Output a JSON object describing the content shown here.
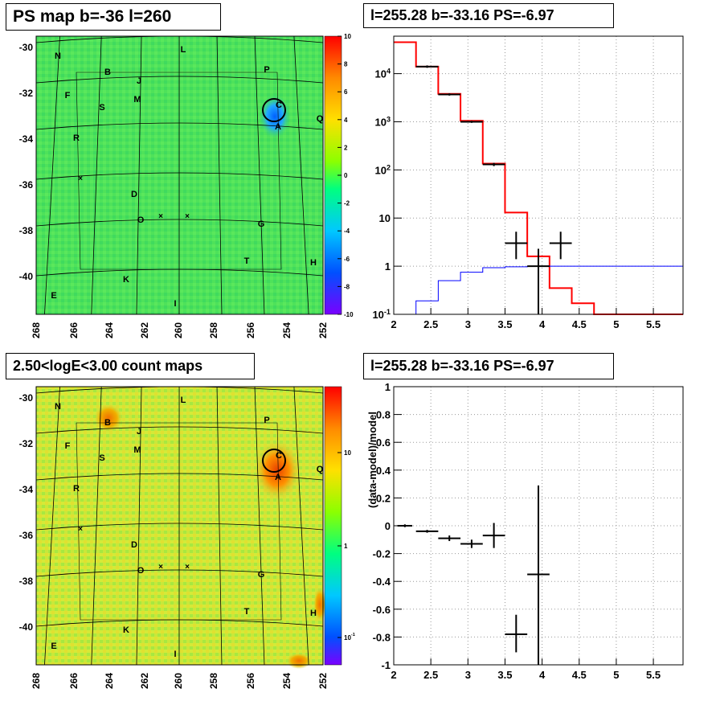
{
  "titles": {
    "map_top": "PS map b=-36 l=260",
    "spec_top": "l=255.28 b=-33.16 PS=-6.97",
    "map_bottom": "2.50<logE<3.00 count maps",
    "spec_bottom": "l=255.28 b=-33.16 PS=-6.97"
  },
  "maps": {
    "y_ticks": [
      "-30",
      "-32",
      "-34",
      "-36",
      "-38",
      "-40"
    ],
    "x_ticks": [
      "268",
      "266",
      "264",
      "262",
      "260",
      "258",
      "256",
      "254",
      "252"
    ],
    "labels": [
      "N",
      "L",
      "P",
      "B",
      "J",
      "F",
      "M",
      "S",
      "C",
      "A",
      "Q",
      "R",
      "D",
      "O",
      "G",
      "T",
      "H",
      "K",
      "E",
      "I"
    ],
    "colorbar_top": [
      "10",
      "8",
      "6",
      "4",
      "2",
      "0",
      "-2",
      "-4",
      "-6",
      "-8",
      "-10"
    ],
    "colorbar_bottom": [
      "10",
      "1",
      "10-1"
    ]
  },
  "chart_data": [
    {
      "type": "line",
      "title": "l=255.28 b=-33.16 PS=-6.97",
      "xlabel": "",
      "ylabel": "",
      "xlim": [
        2,
        5.9
      ],
      "ylim": [
        0.1,
        60000
      ],
      "yscale": "log",
      "x_ticks": [
        "2",
        "2.5",
        "3",
        "3.5",
        "4",
        "4.5",
        "5",
        "5.5"
      ],
      "y_ticks": [
        "10-1",
        "1",
        "10",
        "102",
        "103",
        "104"
      ],
      "grid": true,
      "bin_edges": [
        2.0,
        2.3,
        2.6,
        2.9,
        3.2,
        3.5,
        3.8,
        4.1,
        4.4,
        4.7,
        5.0,
        5.3,
        5.6,
        5.9
      ],
      "series": [
        {
          "color": "#ff0000",
          "values": [
            45000,
            14000,
            3800,
            1050,
            135,
            13,
            1.6,
            0.35,
            0.17,
            0.1,
            0.1,
            0.1,
            0.1
          ]
        },
        {
          "color": "#0000ff",
          "values": [
            0.07,
            0.19,
            0.5,
            0.75,
            0.93,
            0.97,
            0.99,
            1.0,
            1.0,
            1.0,
            1.0,
            1.0,
            1.0
          ]
        }
      ],
      "data_points": [
        {
          "x": 2.45,
          "y": 14000,
          "dx": 0.15,
          "ylo": 13200,
          "yhi": 14800
        },
        {
          "x": 2.75,
          "y": 3700,
          "dx": 0.15,
          "ylo": 3500,
          "yhi": 3900
        },
        {
          "x": 3.05,
          "y": 1000,
          "dx": 0.15,
          "ylo": 950,
          "yhi": 1050
        },
        {
          "x": 3.35,
          "y": 130,
          "dx": 0.15,
          "ylo": 120,
          "yhi": 140
        },
        {
          "x": 3.65,
          "y": 3,
          "dx": 0.15,
          "ylo": 1.4,
          "yhi": 5.2
        },
        {
          "x": 3.95,
          "y": 1,
          "dx": 0.15,
          "ylo": 0.08,
          "yhi": 2.3
        },
        {
          "x": 4.25,
          "y": 3,
          "dx": 0.15,
          "ylo": 1.4,
          "yhi": 5.2
        }
      ]
    },
    {
      "type": "scatter",
      "title": "l=255.28 b=-33.16 PS=-6.97",
      "xlabel": "",
      "ylabel": "(data-model)/model",
      "xlim": [
        2,
        5.9
      ],
      "ylim": [
        -1,
        1
      ],
      "x_ticks": [
        "2",
        "2.5",
        "3",
        "3.5",
        "4",
        "4.5",
        "5",
        "5.5"
      ],
      "y_ticks": [
        "-1",
        "-0.8",
        "-0.6",
        "-0.4",
        "-0.2",
        "0",
        "0.2",
        "0.4",
        "0.6",
        "0.8",
        "1"
      ],
      "grid": true,
      "points": [
        {
          "x": 2.15,
          "y": 0.0,
          "dx": 0.1,
          "ylo": -0.01,
          "yhi": 0.01
        },
        {
          "x": 2.45,
          "y": -0.04,
          "dx": 0.15,
          "ylo": -0.05,
          "yhi": -0.03
        },
        {
          "x": 2.75,
          "y": -0.09,
          "dx": 0.15,
          "ylo": -0.11,
          "yhi": -0.07
        },
        {
          "x": 3.05,
          "y": -0.13,
          "dx": 0.15,
          "ylo": -0.16,
          "yhi": -0.1
        },
        {
          "x": 3.35,
          "y": -0.07,
          "dx": 0.15,
          "ylo": -0.16,
          "yhi": 0.02
        },
        {
          "x": 3.65,
          "y": -0.78,
          "dx": 0.15,
          "ylo": -0.91,
          "yhi": -0.64
        },
        {
          "x": 3.95,
          "y": -0.35,
          "dx": 0.15,
          "ylo": -1.0,
          "yhi": 0.29
        }
      ]
    }
  ]
}
